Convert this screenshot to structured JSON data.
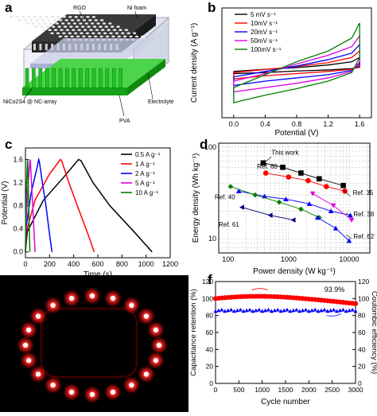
{
  "panels": {
    "a": {
      "letter": "a",
      "labels": {
        "rgo": "RGO",
        "ni_foam": "Ni foam",
        "nico2s4": "NiCo2S4 @ NC-array",
        "electrolyte": "Electrolyte",
        "pva": "PVA"
      },
      "colors": {
        "foam": "#3a3a3a",
        "holes": "#e6e6e6",
        "array": "#22c322",
        "separator": "#c9cfe8",
        "frame": "#a9a9a9"
      }
    },
    "b": {
      "letter": "b",
      "chart_data": {
        "type": "line",
        "xlabel": "Potential (V)",
        "ylabel": "Current density (A g⁻¹)",
        "xlim": [
          -0.15,
          1.75
        ],
        "ylim": [
          -23,
          28
        ],
        "xticks": [
          "0.0",
          "0.4",
          "0.8",
          "1.2",
          "1.6"
        ],
        "xtick_values": [
          0.0,
          0.4,
          0.8,
          1.2,
          1.6
        ],
        "legend_position": "top-left",
        "series": [
          {
            "name": "5 mV s⁻¹",
            "color": "#000000",
            "upper": [
              [
                0,
                -1.5
              ],
              [
                0.4,
                -0.5
              ],
              [
                0.8,
                0.3
              ],
              [
                1.2,
                1.5
              ],
              [
                1.5,
                3
              ],
              [
                1.6,
                5
              ]
            ],
            "lower": [
              [
                1.6,
                0.5
              ],
              [
                1.5,
                -0.2
              ],
              [
                1.2,
                -0.8
              ],
              [
                0.8,
                -1.3
              ],
              [
                0.4,
                -2
              ],
              [
                0,
                -2.5
              ]
            ]
          },
          {
            "name": "10mV s⁻¹",
            "color": "#ff0000",
            "upper": [
              [
                0,
                -2
              ],
              [
                0.4,
                -0.6
              ],
              [
                0.8,
                0.8
              ],
              [
                1.2,
                2.6
              ],
              [
                1.5,
                5
              ],
              [
                1.6,
                8
              ]
            ],
            "lower": [
              [
                1.6,
                1
              ],
              [
                1.5,
                -0.5
              ],
              [
                1.2,
                -1.5
              ],
              [
                0.8,
                -2.5
              ],
              [
                0.4,
                -3.5
              ],
              [
                0,
                -5
              ]
            ]
          },
          {
            "name": "20mV s⁻¹",
            "color": "#0000ff",
            "upper": [
              [
                0,
                -4
              ],
              [
                0.4,
                -1.5
              ],
              [
                0.8,
                1
              ],
              [
                1.2,
                4
              ],
              [
                1.5,
                7
              ],
              [
                1.6,
                11
              ]
            ],
            "lower": [
              [
                1.6,
                2
              ],
              [
                1.5,
                -1
              ],
              [
                1.2,
                -3
              ],
              [
                0.8,
                -4.5
              ],
              [
                0.4,
                -6
              ],
              [
                0,
                -8
              ]
            ]
          },
          {
            "name": "50mV s⁻¹",
            "color": "#e000e0",
            "upper": [
              [
                0,
                -6
              ],
              [
                0.4,
                -2.5
              ],
              [
                0.8,
                2
              ],
              [
                1.2,
                6
              ],
              [
                1.5,
                10
              ],
              [
                1.6,
                15
              ]
            ],
            "lower": [
              [
                1.6,
                3
              ],
              [
                1.5,
                -1.5
              ],
              [
                1.2,
                -4.5
              ],
              [
                0.8,
                -7
              ],
              [
                0.4,
                -9
              ],
              [
                0,
                -11
              ]
            ]
          },
          {
            "name": "100mV s⁻¹",
            "color": "#008000",
            "upper": [
              [
                0,
                -9
              ],
              [
                0.4,
                -3
              ],
              [
                0.8,
                3
              ],
              [
                1.2,
                8
              ],
              [
                1.5,
                14
              ],
              [
                1.6,
                21
              ]
            ],
            "lower": [
              [
                1.6,
                5
              ],
              [
                1.5,
                -2
              ],
              [
                1.2,
                -6
              ],
              [
                0.8,
                -9.5
              ],
              [
                0.4,
                -12.5
              ],
              [
                0,
                -16
              ]
            ]
          }
        ]
      }
    },
    "c": {
      "letter": "c",
      "chart_data": {
        "type": "line",
        "xlabel": "Time (s)",
        "ylabel": "Potential (V)",
        "xlim": [
          0,
          1200
        ],
        "ylim": [
          -0.1,
          1.8
        ],
        "xticks": [
          "0",
          "200",
          "400",
          "600",
          "800",
          "1000",
          "1200"
        ],
        "xtick_values": [
          0,
          200,
          400,
          600,
          800,
          1000,
          1200
        ],
        "yticks": [
          "0.0",
          "0.4",
          "0.8",
          "1.2",
          "1.6"
        ],
        "ytick_values": [
          0.0,
          0.4,
          0.8,
          1.2,
          1.6
        ],
        "legend_position": "top-right",
        "series": [
          {
            "name": "0.5 A g⁻¹",
            "color": "#000000",
            "points": [
              [
                0,
                0
              ],
              [
                15,
                0.35
              ],
              [
                150,
                0.9
              ],
              [
                320,
                1.3
              ],
              [
                440,
                1.6
              ],
              [
                460,
                1.58
              ],
              [
                560,
                1.2
              ],
              [
                700,
                0.8
              ],
              [
                900,
                0.35
              ],
              [
                1050,
                0
              ]
            ]
          },
          {
            "name": "1 A g⁻¹",
            "color": "#ff0000",
            "points": [
              [
                0,
                0
              ],
              [
                8,
                0.35
              ],
              [
                80,
                0.9
              ],
              [
                200,
                1.35
              ],
              [
                290,
                1.6
              ],
              [
                300,
                1.58
              ],
              [
                360,
                1.2
              ],
              [
                430,
                0.8
              ],
              [
                520,
                0.3
              ],
              [
                570,
                0
              ]
            ]
          },
          {
            "name": "2 A g⁻¹",
            "color": "#0000ff",
            "points": [
              [
                0,
                0
              ],
              [
                5,
                0.4
              ],
              [
                45,
                1.0
              ],
              [
                95,
                1.45
              ],
              [
                110,
                1.6
              ],
              [
                115,
                1.57
              ],
              [
                140,
                1.2
              ],
              [
                170,
                0.8
              ],
              [
                200,
                0.3
              ],
              [
                220,
                0
              ]
            ]
          },
          {
            "name": "5 A g⁻¹",
            "color": "#e000e0",
            "points": [
              [
                0,
                0
              ],
              [
                3,
                0.4
              ],
              [
                20,
                1.1
              ],
              [
                38,
                1.6
              ],
              [
                41,
                1.57
              ],
              [
                55,
                1.0
              ],
              [
                70,
                0.4
              ],
              [
                80,
                0
              ]
            ]
          },
          {
            "name": "10 A g⁻¹",
            "color": "#008000",
            "points": [
              [
                0,
                0
              ],
              [
                2,
                0.5
              ],
              [
                10,
                1.2
              ],
              [
                17,
                1.6
              ],
              [
                19,
                1.57
              ],
              [
                26,
                0.9
              ],
              [
                33,
                0.3
              ],
              [
                37,
                0
              ]
            ]
          }
        ]
      }
    },
    "d": {
      "letter": "d",
      "chart_data": {
        "type": "scatter",
        "xlabel": "Power density (W kg⁻¹)",
        "ylabel": "Energy density (Wh kg⁻¹)",
        "x_scale": "log",
        "y_scale": "log",
        "xlim": [
          70,
          22000
        ],
        "ylim": [
          7,
          110
        ],
        "xticks": [
          "100",
          "1000",
          "10000"
        ],
        "xtick_values": [
          100,
          1000,
          10000
        ],
        "yticks": [
          "10",
          "100"
        ],
        "ytick_values": [
          10,
          100
        ],
        "grid": true,
        "series": [
          {
            "name": "This work",
            "color": "#000000",
            "marker": "square",
            "points": [
              [
                380,
                67
              ],
              [
                800,
                60
              ],
              [
                1600,
                52
              ],
              [
                3200,
                45
              ],
              [
                8000,
                38
              ]
            ]
          },
          {
            "name": "Ref. 60",
            "color": "#ff0000",
            "marker": "circle",
            "points": [
              [
                420,
                52
              ],
              [
                1000,
                47
              ],
              [
                2100,
                43
              ],
              [
                4200,
                37
              ],
              [
                8500,
                33
              ]
            ]
          },
          {
            "name": "Ref. 35",
            "color": "#0000ff",
            "marker": "triangle-up",
            "points": [
              [
                150,
                33
              ],
              [
                400,
                29
              ],
              [
                900,
                27
              ],
              [
                2200,
                24
              ],
              [
                5000,
                20
              ],
              [
                10500,
                18
              ]
            ]
          },
          {
            "name": "Ref. 40",
            "color": "#008000",
            "marker": "diamond",
            "points": [
              [
                110,
                37
              ],
              [
                280,
                30
              ],
              [
                700,
                25
              ],
              [
                1600,
                21
              ],
              [
                3200,
                17
              ]
            ]
          },
          {
            "name": "Ref. 38",
            "color": "#e000e0",
            "marker": "triangle-down",
            "points": [
              [
                2500,
                31
              ],
              [
                5500,
                23
              ],
              [
                11000,
                16
              ]
            ]
          },
          {
            "name": "Ref. 61",
            "color": "#000080",
            "marker": "triangle-left",
            "points": [
              [
                170,
                22
              ],
              [
                500,
                18
              ],
              [
                1200,
                16
              ]
            ]
          },
          {
            "name": "Ref. 62",
            "color": "#0000ff",
            "marker": "triangle-up",
            "points": [
              [
                3000,
                17
              ],
              [
                6000,
                13
              ],
              [
                10000,
                9.5
              ]
            ]
          }
        ],
        "annotations": [
          "This work",
          "Ref. 60",
          "Ref. 35",
          "Ref. 40",
          "Ref. 38",
          "Ref. 61",
          "Ref. 62"
        ]
      }
    },
    "e": {
      "letter": "e",
      "led_count": 20,
      "colors": {
        "led": "#ff2a2a",
        "glow": "#ff0000",
        "bg": "#000000"
      }
    },
    "f": {
      "letter": "f",
      "chart_data": {
        "type": "scatter",
        "xlabel": "Cycle number",
        "ylabel": "Capacitance retention (%)",
        "ylabel_right": "Coulombic efficiency (%)",
        "xlim": [
          0,
          3000
        ],
        "ylim": [
          0,
          120
        ],
        "xticks": [
          "0",
          "500",
          "1000",
          "1500",
          "2000",
          "2500",
          "3000"
        ],
        "xtick_values": [
          0,
          500,
          1000,
          1500,
          2000,
          2500,
          3000
        ],
        "yticks": [
          "0",
          "20",
          "40",
          "60",
          "80",
          "100",
          "120"
        ],
        "ytick_values": [
          0,
          20,
          40,
          60,
          80,
          100,
          120
        ],
        "annotation": "93.9%",
        "series": [
          {
            "name": "Capacitance retention",
            "color": "#ff0000",
            "marker": "circle",
            "axis": "left",
            "start": 100,
            "peak": 104,
            "end": 93.9
          },
          {
            "name": "Coulombic efficiency",
            "color": "#0000ff",
            "marker": "triangle-up",
            "axis": "left",
            "level": 86
          }
        ]
      }
    }
  }
}
